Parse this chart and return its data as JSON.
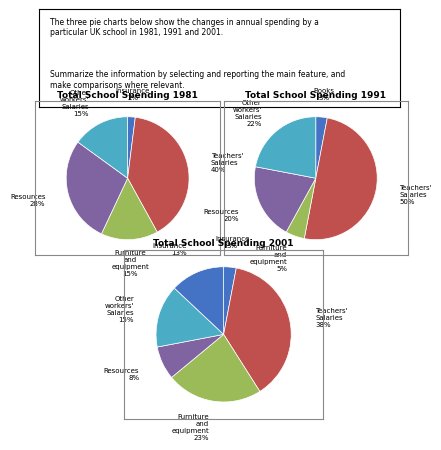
{
  "title_text": "The three pie charts below show the changes in annual spending by a\nparticular UK school in 1981, 1991 and 2001.",
  "prompt_text": "Summarize the information by selecting and reporting the main feature, and\nmake comparisons where relevant.",
  "charts": [
    {
      "title": "Total School Spending 1981",
      "labels": [
        "Insurance\n2%",
        "Teachers'\nSalaries\n40%",
        "Furniture\nand\nequipment\n15%",
        "Resources\n28%",
        "Other\nworkers'\nSalaries\n15%"
      ],
      "values": [
        2,
        40,
        15,
        28,
        15
      ],
      "colors": [
        "#4472C4",
        "#C0504D",
        "#9BBB59",
        "#8064A2",
        "#4BACC6"
      ],
      "startangle": 90,
      "label_angles_offsets": [
        0,
        0,
        0,
        0,
        0
      ]
    },
    {
      "title": "Total School Spending 1991",
      "labels": [
        "Books\n3%",
        "Teachers'\nSalaries\n50%",
        "Furniture\nand\nequipment\n5%",
        "Resources\n20%",
        "Other\nworkers'\nSalaries\n22%"
      ],
      "values": [
        3,
        50,
        5,
        20,
        22
      ],
      "colors": [
        "#4472C4",
        "#C0504D",
        "#9BBB59",
        "#8064A2",
        "#4BACC6"
      ],
      "startangle": 90,
      "label_angles_offsets": [
        0,
        0,
        0,
        0,
        0
      ]
    },
    {
      "title": "Total School Spending 2001",
      "labels": [
        "Insurance\n3%",
        "Teachers'\nSalaries\n38%",
        "Furniture\nand\nequipment\n23%",
        "Resources\n8%",
        "Other\nworkers'\nSalaries\n15%",
        "Insurance\n13%"
      ],
      "values": [
        3,
        38,
        23,
        8,
        15,
        13
      ],
      "colors": [
        "#4472C4",
        "#C0504D",
        "#9BBB59",
        "#8064A2",
        "#4BACC6",
        "#4472C4"
      ],
      "startangle": 90,
      "label_angles_offsets": [
        0,
        0,
        0,
        0,
        0,
        0
      ]
    }
  ],
  "bg_color": "#FFFFFF",
  "label_fontsize": 5,
  "title_fontsize": 6.5
}
